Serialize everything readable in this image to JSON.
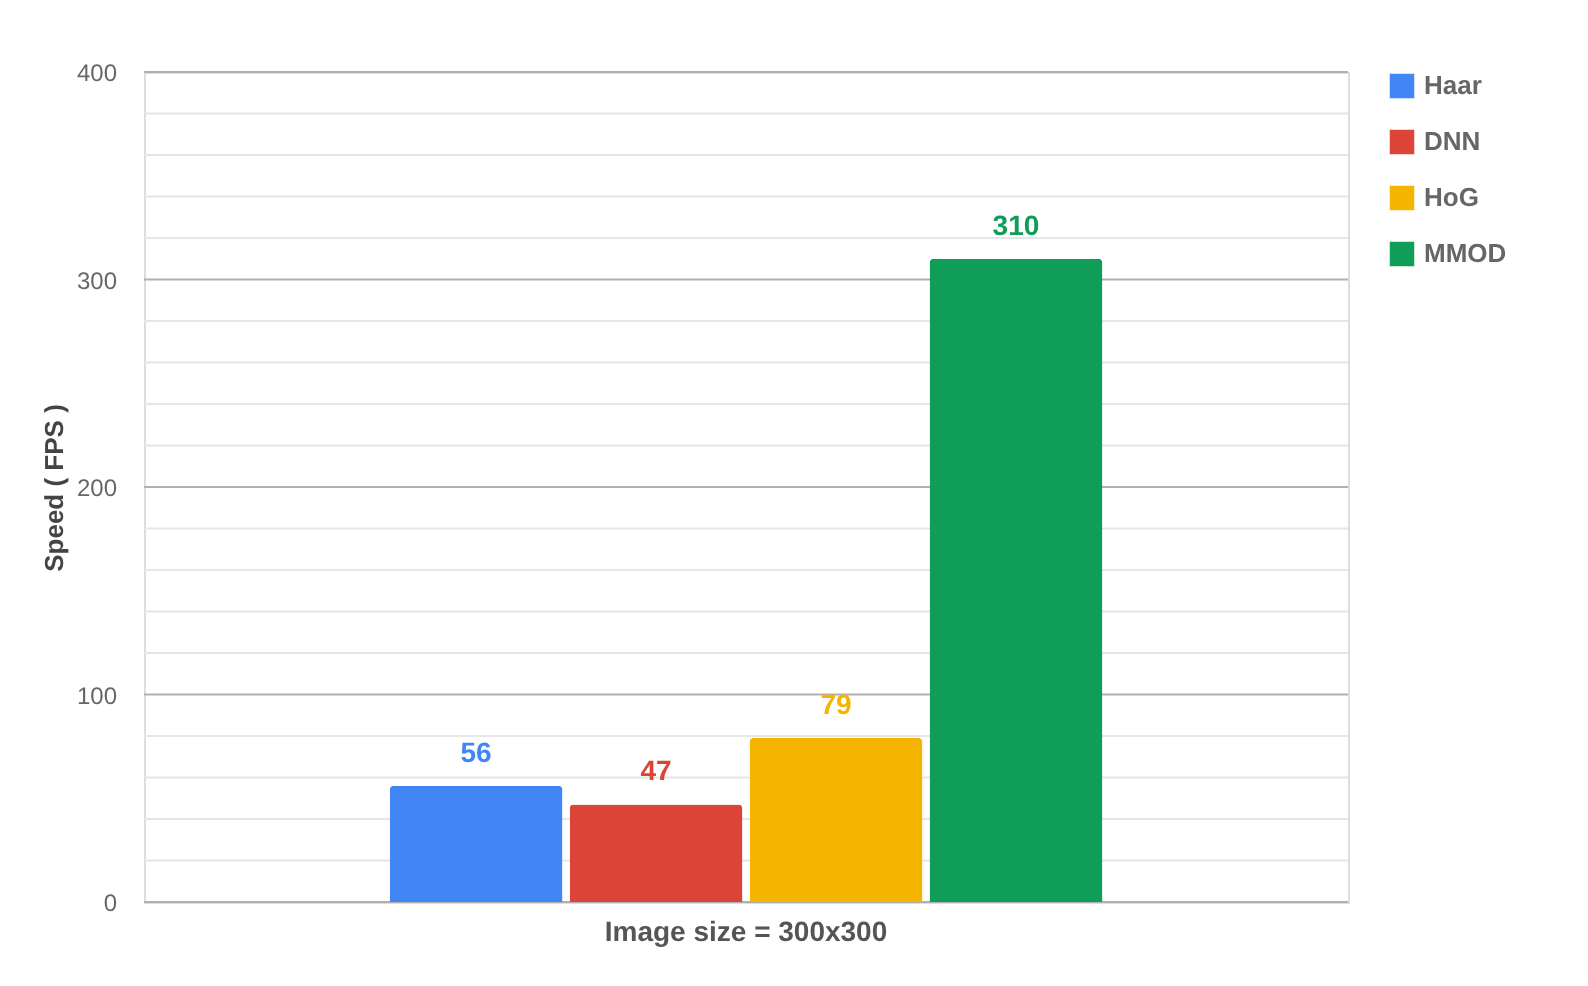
{
  "chart_data": {
    "type": "bar",
    "ylabel": "Speed ( FPS )",
    "categories": [
      "Image size = 300x300"
    ],
    "series": [
      {
        "name": "Haar",
        "color": "#4285f4",
        "values": [
          56
        ]
      },
      {
        "name": "DNN",
        "color": "#db4437",
        "values": [
          47
        ]
      },
      {
        "name": "HoG",
        "color": "#f4b400",
        "values": [
          79
        ]
      },
      {
        "name": "MMOD",
        "color": "#0f9d58",
        "values": [
          310
        ]
      }
    ],
    "ylim": [
      0,
      400
    ],
    "yticks": [
      0,
      {
        "value": 20,
        "label": null
      },
      {
        "value": 40,
        "label": null
      },
      {
        "value": 60,
        "label": null
      },
      {
        "value": 80,
        "label": null
      },
      100,
      {
        "value": 120,
        "label": null
      },
      {
        "value": 140,
        "label": null
      },
      {
        "value": 160,
        "label": null
      },
      {
        "value": 180,
        "label": null
      },
      200,
      {
        "value": 220,
        "label": null
      },
      {
        "value": 240,
        "label": null
      },
      {
        "value": 260,
        "label": null
      },
      {
        "value": 280,
        "label": null
      },
      300,
      {
        "value": 320,
        "label": null
      },
      {
        "value": 340,
        "label": null
      },
      {
        "value": 360,
        "label": null
      },
      {
        "value": 380,
        "label": null
      },
      400
    ],
    "data_labels": true,
    "grid": "y",
    "legend": "top right"
  }
}
